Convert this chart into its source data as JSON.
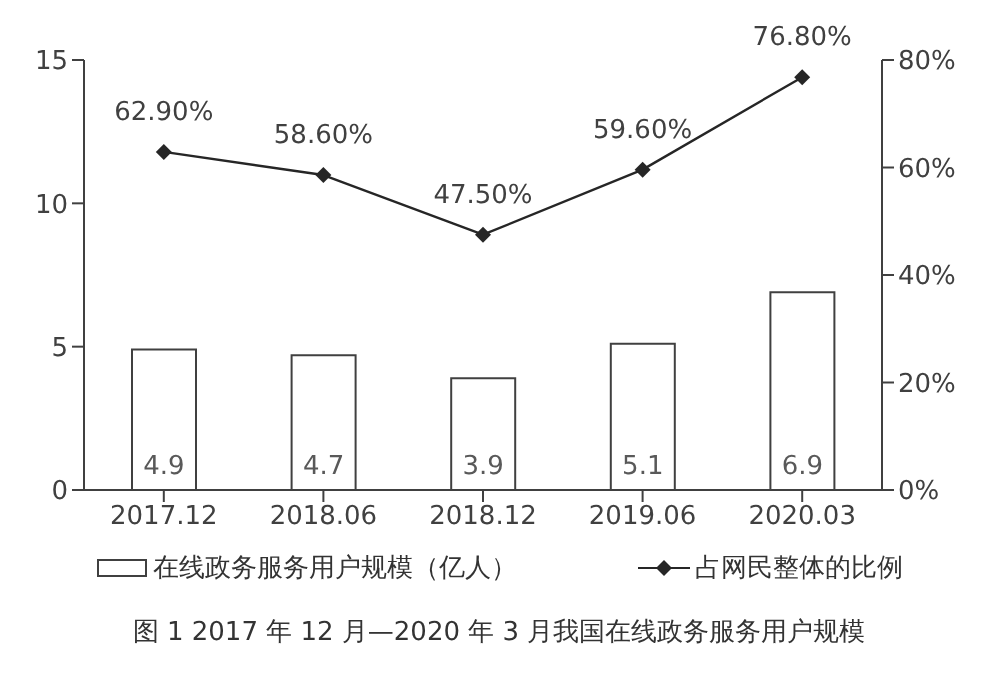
{
  "chart_data": {
    "type": "bar",
    "categories": [
      "2017.12",
      "2018.06",
      "2018.12",
      "2019.06",
      "2020.03"
    ],
    "series": [
      {
        "name": "在线政务服务用户规模（亿人）",
        "color": "#ffffff",
        "values": [
          4.9,
          4.7,
          3.9,
          5.1,
          6.9
        ],
        "value_labels": [
          "4.9",
          "4.7",
          "3.9",
          "5.1",
          "6.9"
        ]
      },
      {
        "name": "占网民整体的比例",
        "type": "line",
        "axis": "y2",
        "color": "#262626",
        "marker": "diamond",
        "values": [
          62.9,
          58.6,
          47.5,
          59.6,
          76.8
        ],
        "value_labels": [
          "62.90%",
          "58.60%",
          "47.50%",
          "59.60%",
          "76.80%"
        ]
      }
    ],
    "ylim": [
      0,
      15
    ],
    "yticks": [
      0,
      5,
      10,
      15
    ],
    "y2lim": [
      0,
      80
    ],
    "y2ticks": [
      {
        "value": 0,
        "label": "0%"
      },
      {
        "value": 20,
        "label": "20%"
      },
      {
        "value": 40,
        "label": "40%"
      },
      {
        "value": 60,
        "label": "60%"
      },
      {
        "value": 80,
        "label": "80%"
      }
    ],
    "grid": false,
    "legend": "bottom",
    "annotations": [
      "图 1 2017 年 12 月—2020 年 3 月我国在线政务服务用户规模"
    ]
  }
}
